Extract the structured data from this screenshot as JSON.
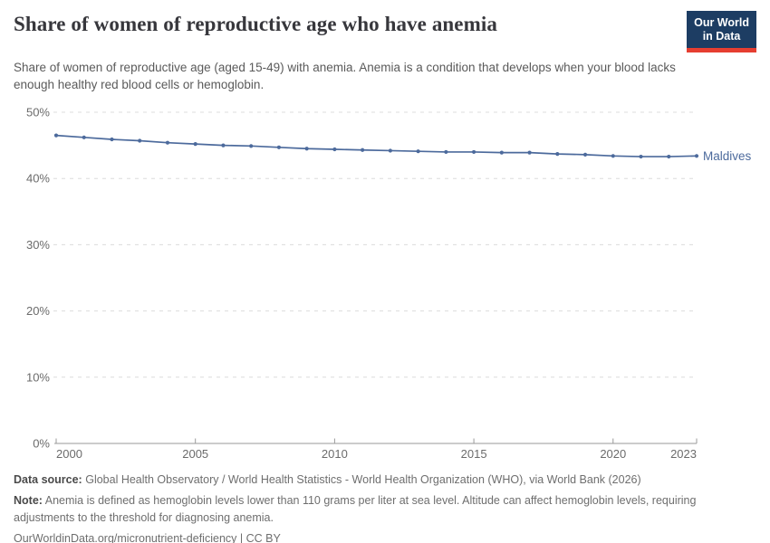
{
  "header": {
    "title": "Share of women of reproductive age who have anemia",
    "subtitle": "Share of women of reproductive age (aged 15-49) with anemia. Anemia is a condition that develops when your blood lacks enough healthy red blood cells or hemoglobin.",
    "logo": {
      "line1": "Our World",
      "line2": "in Data",
      "bg_color": "#1d3d63",
      "accent_color": "#e63e31"
    }
  },
  "chart_data": {
    "type": "line",
    "title": "Share of women of reproductive age who have anemia",
    "x": [
      2000,
      2001,
      2002,
      2003,
      2004,
      2005,
      2006,
      2007,
      2008,
      2009,
      2010,
      2011,
      2012,
      2013,
      2014,
      2015,
      2016,
      2017,
      2018,
      2019,
      2020,
      2021,
      2022,
      2023
    ],
    "series": [
      {
        "name": "Maldives",
        "color": "#4c6a9c",
        "values": [
          46.5,
          46.2,
          45.9,
          45.7,
          45.4,
          45.2,
          45.0,
          44.9,
          44.7,
          44.5,
          44.4,
          44.3,
          44.2,
          44.1,
          44.0,
          44.0,
          43.9,
          43.9,
          43.7,
          43.6,
          43.4,
          43.3,
          43.3,
          43.4
        ]
      }
    ],
    "xlabel": "",
    "ylabel": "",
    "xlim": [
      2000,
      2023
    ],
    "ylim": [
      0,
      50
    ],
    "x_ticks": [
      2000,
      2005,
      2010,
      2015,
      2020,
      2023
    ],
    "y_ticks": [
      0,
      10,
      20,
      30,
      40,
      50
    ],
    "y_tick_format": "{}%",
    "grid": "horizontal-dashed",
    "legend_position": "end-of-line-label",
    "colors": {
      "gridline": "#dcdcdc",
      "axis": "#9a9a9a",
      "tick_label": "#6b6b6b"
    }
  },
  "footer": {
    "data_source_label": "Data source:",
    "data_source": "Global Health Observatory / World Health Statistics - World Health Organization (WHO), via World Bank (2026)",
    "note_label": "Note:",
    "note": "Anemia is defined as hemoglobin levels lower than 110 grams per liter at sea level. Altitude can affect hemoglobin levels, requiring adjustments to the threshold for diagnosing anemia.",
    "citation": "OurWorldinData.org/micronutrient-deficiency | CC BY"
  }
}
